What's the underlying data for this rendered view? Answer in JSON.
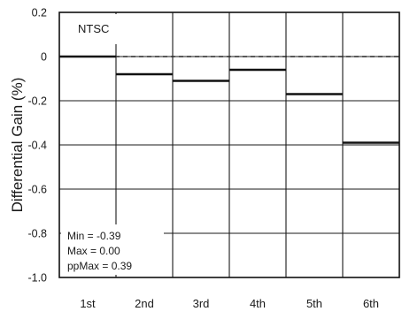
{
  "chart_data": {
    "type": "line",
    "style": "step",
    "annotation_title": "NTSC",
    "ylabel": "Differential Gain (%)",
    "xlabel": "",
    "categories": [
      "1st",
      "2nd",
      "3rd",
      "4th",
      "5th",
      "6th"
    ],
    "values": [
      0.0,
      -0.08,
      -0.11,
      -0.06,
      -0.17,
      -0.39
    ],
    "reference_line": {
      "value": 0,
      "style": "dashed"
    },
    "ylim": [
      -1.0,
      0.2
    ],
    "yticks": [
      0.2,
      0,
      -0.2,
      -0.4,
      -0.6,
      -0.8,
      -1.0
    ],
    "ytick_labels": [
      "0.2",
      "0",
      "-0.2",
      "-0.4",
      "-0.6",
      "-0.8",
      "-1.0"
    ],
    "grid": true,
    "stats": {
      "min": "Min = -0.39",
      "max": "Max = 0.00",
      "ppmax": "ppMax = 0.39"
    },
    "colors": {
      "line": "#111111",
      "grid": "#1a1a1a",
      "frame": "#111111"
    }
  }
}
